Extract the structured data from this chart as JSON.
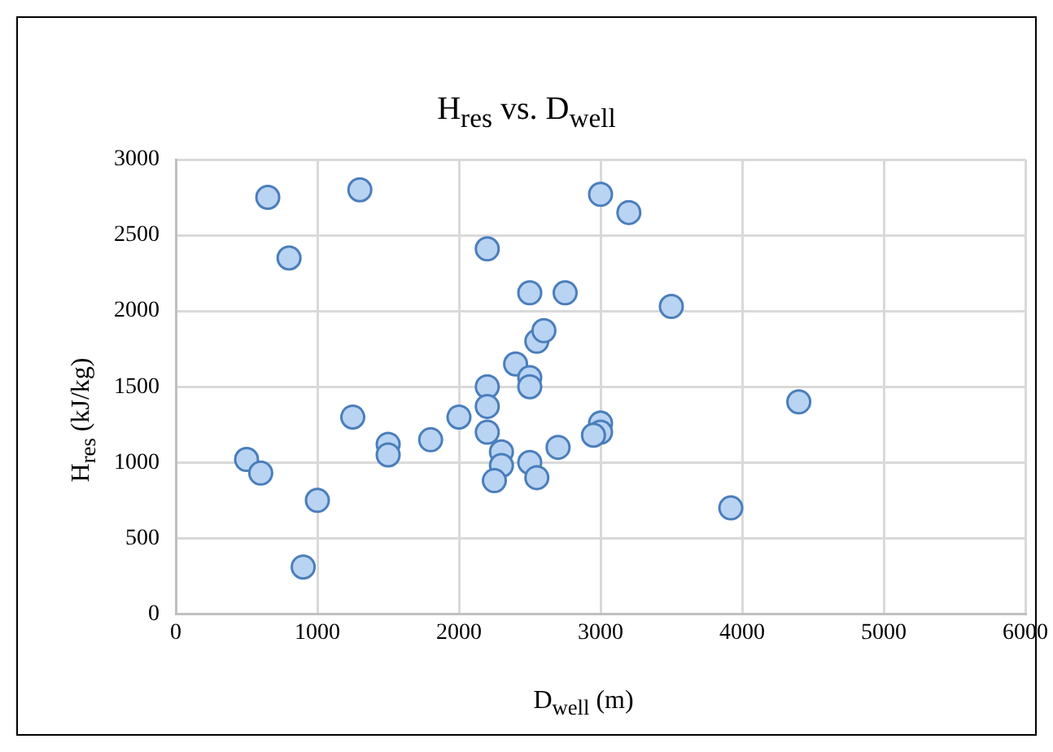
{
  "chart_data": {
    "type": "scatter",
    "title": "H$_{res}$ vs. D$_{well}$",
    "xlabel": "D$_{well}$ (m)",
    "ylabel": "H$_{res}$ (kJ/kg)",
    "x": [
      650,
      1300,
      800,
      2200,
      3000,
      3200,
      2500,
      2750,
      3500,
      2550,
      2600,
      2400,
      2500,
      2500,
      2200,
      2200,
      1250,
      2000,
      2200,
      1500,
      1500,
      1800,
      3000,
      3000,
      2950,
      2300,
      2300,
      2250,
      2500,
      2550,
      2700,
      500,
      600,
      1000,
      900,
      4400,
      3920
    ],
    "series": [
      {
        "color": "#4a7ebb",
        "values": [
          2750,
          2800,
          2350,
          2410,
          2770,
          2650,
          2120,
          2120,
          2030,
          1800,
          1870,
          1650,
          1560,
          1500,
          1500,
          1370,
          1300,
          1300,
          1200,
          1120,
          1050,
          1150,
          1260,
          1200,
          1180,
          1070,
          980,
          880,
          1000,
          900,
          1100,
          1020,
          930,
          750,
          310,
          1400,
          700
        ]
      }
    ],
    "xlim": [
      0,
      6000
    ],
    "xticks": [
      0,
      1000,
      2000,
      3000,
      4000,
      5000,
      6000
    ],
    "ylim": [
      0,
      3000
    ],
    "yticks": [
      0,
      500,
      1000,
      1500,
      2000,
      2500,
      3000
    ],
    "grid": true,
    "legend": false,
    "marker": "circle"
  }
}
